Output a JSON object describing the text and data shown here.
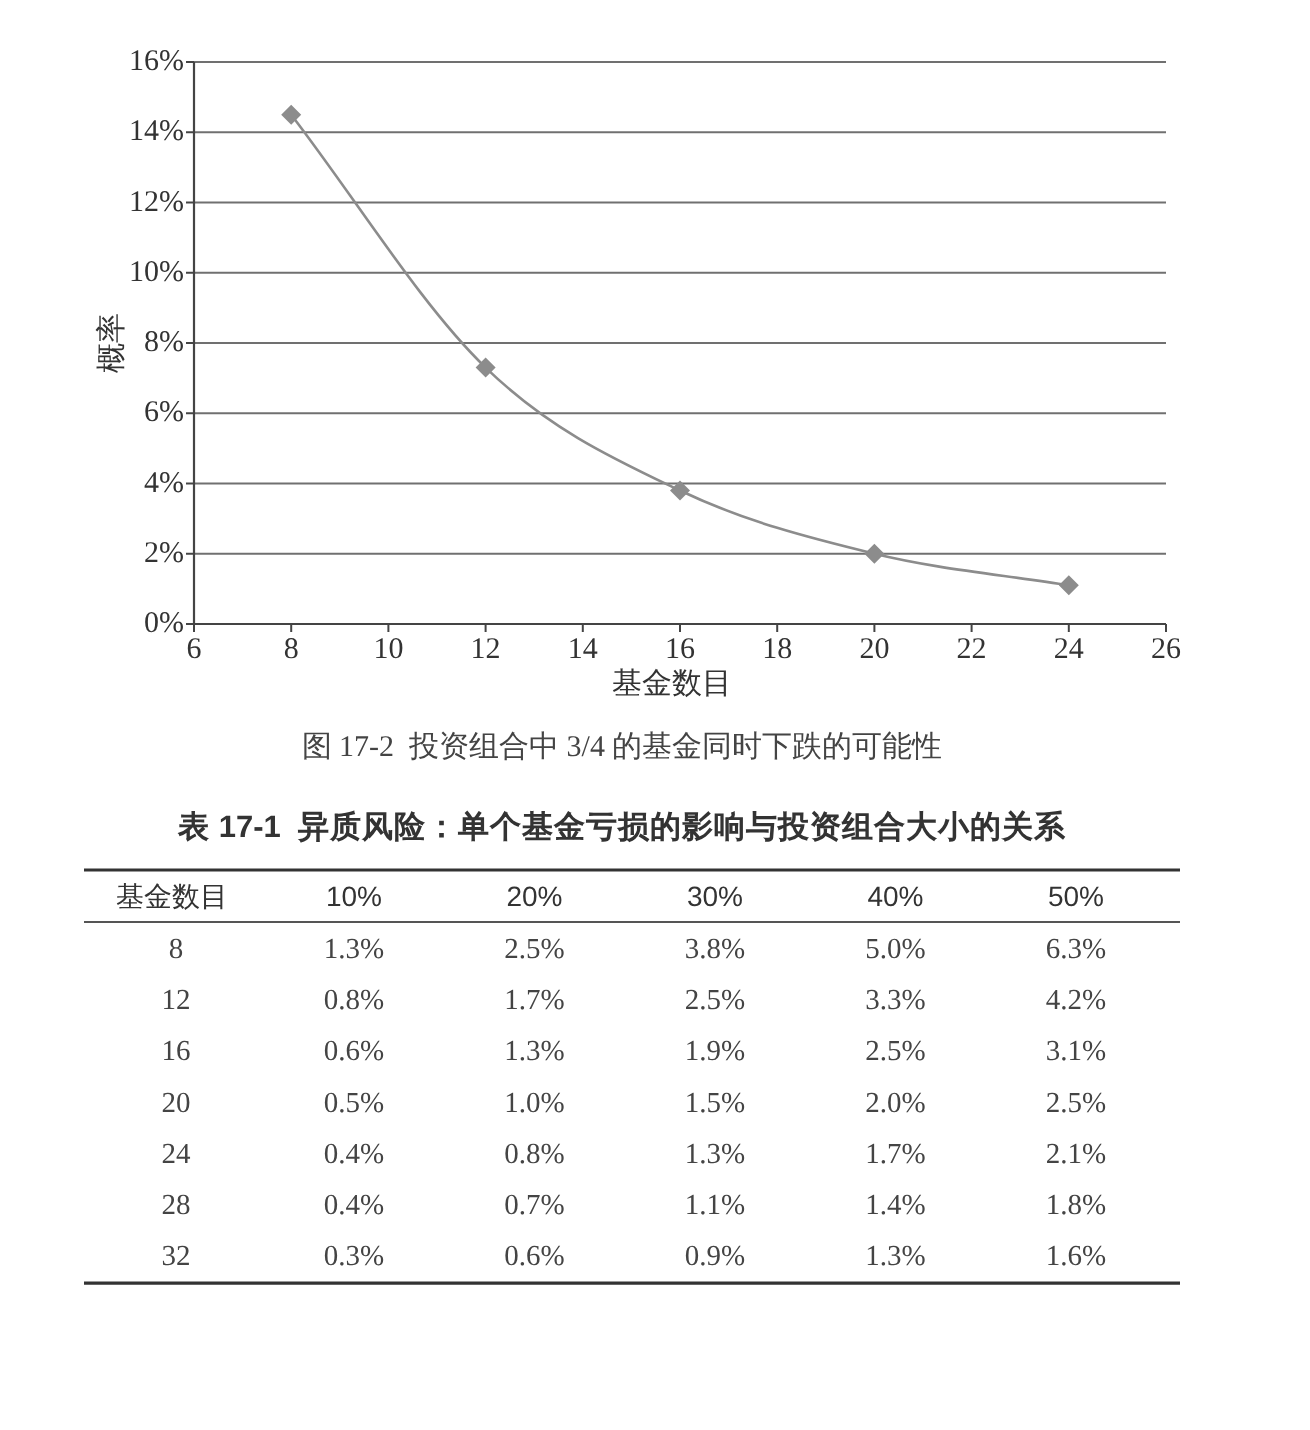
{
  "chart_data": [
    {
      "type": "line",
      "x": [
        8,
        12,
        16,
        20,
        24
      ],
      "values": [
        14.5,
        7.3,
        3.8,
        2.0,
        1.1
      ],
      "color": "#8c8c8c",
      "xlim": [
        6,
        26
      ],
      "xticks": [
        6,
        8,
        10,
        12,
        14,
        16,
        18,
        20,
        22,
        24,
        26
      ],
      "ylim": [
        0,
        16
      ],
      "yticks": [
        {
          "value": 0,
          "label": "0%"
        },
        {
          "value": 2,
          "label": "2%"
        },
        {
          "value": 4,
          "label": "4%"
        },
        {
          "value": 6,
          "label": "6%"
        },
        {
          "value": 8,
          "label": "8%"
        },
        {
          "value": 10,
          "label": "10%"
        },
        {
          "value": 12,
          "label": "12%"
        },
        {
          "value": 14,
          "label": "14%"
        },
        {
          "value": 16,
          "label": "16%"
        }
      ],
      "xlabel": "基金数目",
      "ylabel": "概率",
      "grid": "y",
      "marker": "diamond",
      "line_style": "solid",
      "annotations": [
        "图 17-2  投资组合中 3/4 的基金同时下跌的可能性"
      ]
    },
    {
      "type": "heatmap",
      "title": "表 17-1  异质风险：单个基金亏损的影响与投资组合大小的关系",
      "ylabel": "基金数目",
      "categories": [
        "10%",
        "20%",
        "30%",
        "40%",
        "50%"
      ],
      "y_categories": [
        "8",
        "12",
        "16",
        "20",
        "24",
        "28",
        "32"
      ],
      "cells": [
        [
          1.3,
          2.5,
          3.8,
          5.0,
          6.3
        ],
        [
          0.8,
          1.7,
          2.5,
          3.3,
          4.2
        ],
        [
          0.6,
          1.3,
          1.9,
          2.5,
          3.1
        ],
        [
          0.5,
          1.0,
          1.5,
          2.0,
          2.5
        ],
        [
          0.4,
          0.8,
          1.3,
          1.7,
          2.1
        ],
        [
          0.4,
          0.7,
          1.1,
          1.4,
          1.8
        ],
        [
          0.3,
          0.6,
          0.9,
          1.3,
          1.6
        ]
      ],
      "cell_labels": [
        [
          "1.3%",
          "2.5%",
          "3.8%",
          "5.0%",
          "6.3%"
        ],
        [
          "0.8%",
          "1.7%",
          "2.5%",
          "3.3%",
          "4.2%"
        ],
        [
          "0.6%",
          "1.3%",
          "1.9%",
          "2.5%",
          "3.1%"
        ],
        [
          "0.5%",
          "1.0%",
          "1.5%",
          "2.0%",
          "2.5%"
        ],
        [
          "0.4%",
          "0.8%",
          "1.3%",
          "1.7%",
          "2.1%"
        ],
        [
          "0.4%",
          "0.7%",
          "1.1%",
          "1.4%",
          "1.8%"
        ],
        [
          "0.3%",
          "0.6%",
          "0.9%",
          "1.3%",
          "1.6%"
        ]
      ]
    }
  ]
}
